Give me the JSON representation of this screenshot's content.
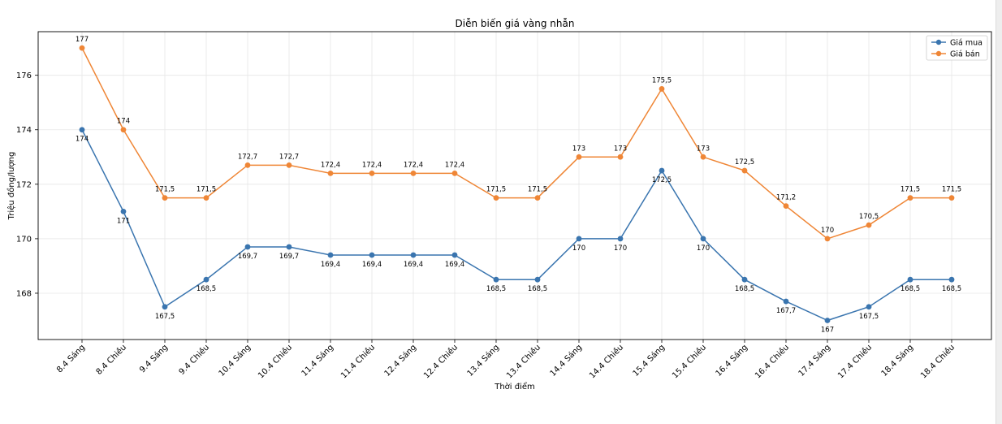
{
  "chart_data": {
    "type": "line",
    "title": "Diễn biến giá vàng nhẫn",
    "xlabel": "Thời điểm",
    "ylabel": "Triệu đồng/lượng",
    "ylim": [
      166.3,
      177.6
    ],
    "yticks": [
      168,
      170,
      172,
      174,
      176
    ],
    "grid": true,
    "legend_position": "top-right",
    "categories": [
      "8.4 Sáng",
      "8.4 Chiều",
      "9.4 Sáng",
      "9.4 Chiều",
      "10.4 Sáng",
      "10.4 Chiều",
      "11.4 Sáng",
      "11.4 Chiều",
      "12.4 Sáng",
      "12.4 Chiều",
      "13.4 Sáng",
      "13.4 Chiều",
      "14.4 Sáng",
      "14.4 Chiều",
      "15.4 Sáng",
      "15.4 Chiều",
      "16.4 Sáng",
      "16.4 Chiều",
      "17.4 Sáng",
      "17.4 Chiều",
      "18.4 Sáng",
      "18.4 Chiều"
    ],
    "series": [
      {
        "name": "Giá mua",
        "color": "#3a75af",
        "label_side": "below",
        "values": [
          174,
          171,
          167.5,
          168.5,
          169.7,
          169.7,
          169.4,
          169.4,
          169.4,
          169.4,
          168.5,
          168.5,
          170,
          170,
          172.5,
          170,
          168.5,
          167.7,
          167,
          167.5,
          168.5,
          168.5
        ],
        "labels": [
          "174",
          "171",
          "167,5",
          "168,5",
          "169,7",
          "169,7",
          "169,4",
          "169,4",
          "169,4",
          "169,4",
          "168,5",
          "168,5",
          "170",
          "170",
          "172,5",
          "170",
          "168,5",
          "167,7",
          "167",
          "167,5",
          "168,5",
          "168,5"
        ]
      },
      {
        "name": "Giá bán",
        "color": "#ef8636",
        "label_side": "above",
        "values": [
          177,
          174,
          171.5,
          171.5,
          172.7,
          172.7,
          172.4,
          172.4,
          172.4,
          172.4,
          171.5,
          171.5,
          173,
          173,
          175.5,
          173,
          172.5,
          171.2,
          170,
          170.5,
          171.5,
          171.5
        ],
        "labels": [
          "177",
          "174",
          "171,5",
          "171,5",
          "172,7",
          "172,7",
          "172,4",
          "172,4",
          "172,4",
          "172,4",
          "171,5",
          "171,5",
          "173",
          "173",
          "175,5",
          "173",
          "172,5",
          "171,2",
          "170",
          "170,5",
          "171,5",
          "171,5"
        ]
      }
    ]
  }
}
